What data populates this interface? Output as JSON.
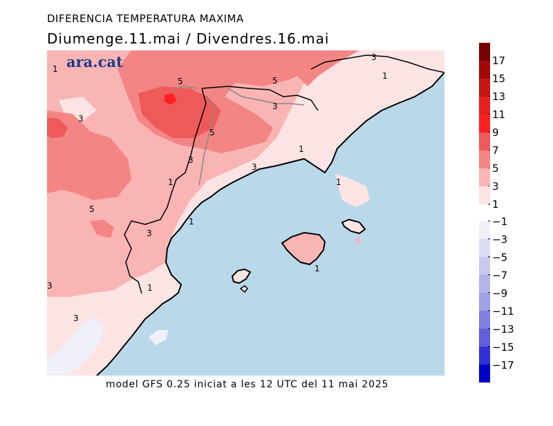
{
  "header": {
    "title": "DIFERENCIA TEMPERATURA MAXIMA",
    "subtitle": "Diumenge.11.mai  /  Divendres.16.mai"
  },
  "brand": "ara.cat",
  "footer": "model GFS 0.25 iniciat a les 12 UTC del 11 mai 2025",
  "colors": {
    "sea": "#b9d8ea",
    "coast": "#000000",
    "border": "#909090",
    "pos_scale": [
      "#fde4e4",
      "#f9b4b4",
      "#f48585",
      "#ee5a5a",
      "#ff1f1f",
      "#e62020",
      "#c81414",
      "#a50808",
      "#7a0000"
    ],
    "neg_scale": [
      "#f0f0fb",
      "#dcdcf5",
      "#c8c8ef",
      "#b4b4ea",
      "#a0a0e6",
      "#8080e0",
      "#6060dc",
      "#3030d8",
      "#0000c8"
    ]
  },
  "legend": {
    "positive": [
      "17",
      "15",
      "13",
      "11",
      "9",
      "7",
      "5",
      "3",
      "1"
    ],
    "negative": [
      "−1",
      "−3",
      "−5",
      "−7",
      "−9",
      "−11",
      "−13",
      "−15",
      "−17"
    ]
  },
  "contour_labels": [
    "1",
    "5",
    "5",
    "3",
    "3",
    "3",
    "5",
    "3",
    "3",
    "1",
    "1",
    "1",
    "5",
    "3",
    "3",
    "1",
    "1",
    "1",
    "1",
    "3",
    "1"
  ]
}
